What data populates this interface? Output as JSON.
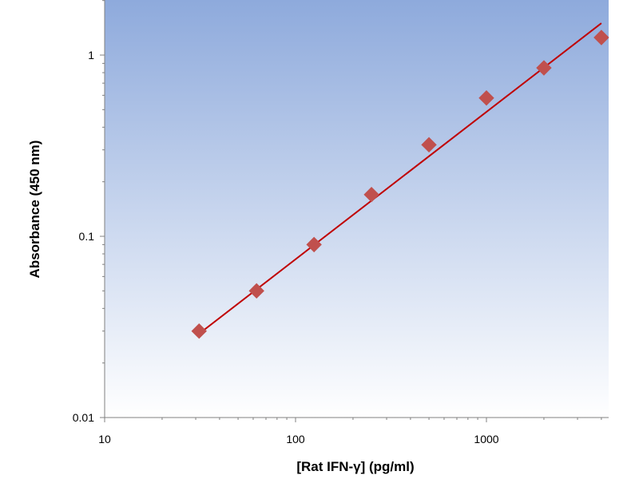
{
  "chart_data": {
    "type": "scatter",
    "title": "",
    "xlabel": "[Rat IFN-γ] (pg/ml)",
    "ylabel": "Absorbance (450 nm)",
    "x_scale": "log",
    "y_scale": "log",
    "xlim": [
      10,
      4000
    ],
    "ylim": [
      0.01,
      2
    ],
    "x_ticks": [
      10,
      100,
      1000
    ],
    "x_tick_labels": [
      "10",
      "100",
      "1000"
    ],
    "y_ticks": [
      0.01,
      0.1,
      1
    ],
    "y_tick_labels": [
      "0.01",
      "0.1",
      "1"
    ],
    "grid": false,
    "legend": "none",
    "series": [
      {
        "marker": "diamond",
        "color": "#c0504d",
        "x": [
          31.25,
          62.5,
          125,
          250,
          500,
          1000,
          2000,
          4000
        ],
        "y": [
          0.03,
          0.05,
          0.09,
          0.17,
          0.32,
          0.58,
          0.85,
          1.25
        ]
      }
    ],
    "trendline": {
      "type": "power",
      "color": "#c00000",
      "x": [
        31.25,
        4000
      ],
      "y": [
        0.029,
        1.5
      ]
    },
    "colors": {
      "plot_bg_top": "#8eaadc",
      "plot_bg_bottom": "#ffffff",
      "marker": "#c0504d",
      "trendline": "#c00000"
    }
  }
}
